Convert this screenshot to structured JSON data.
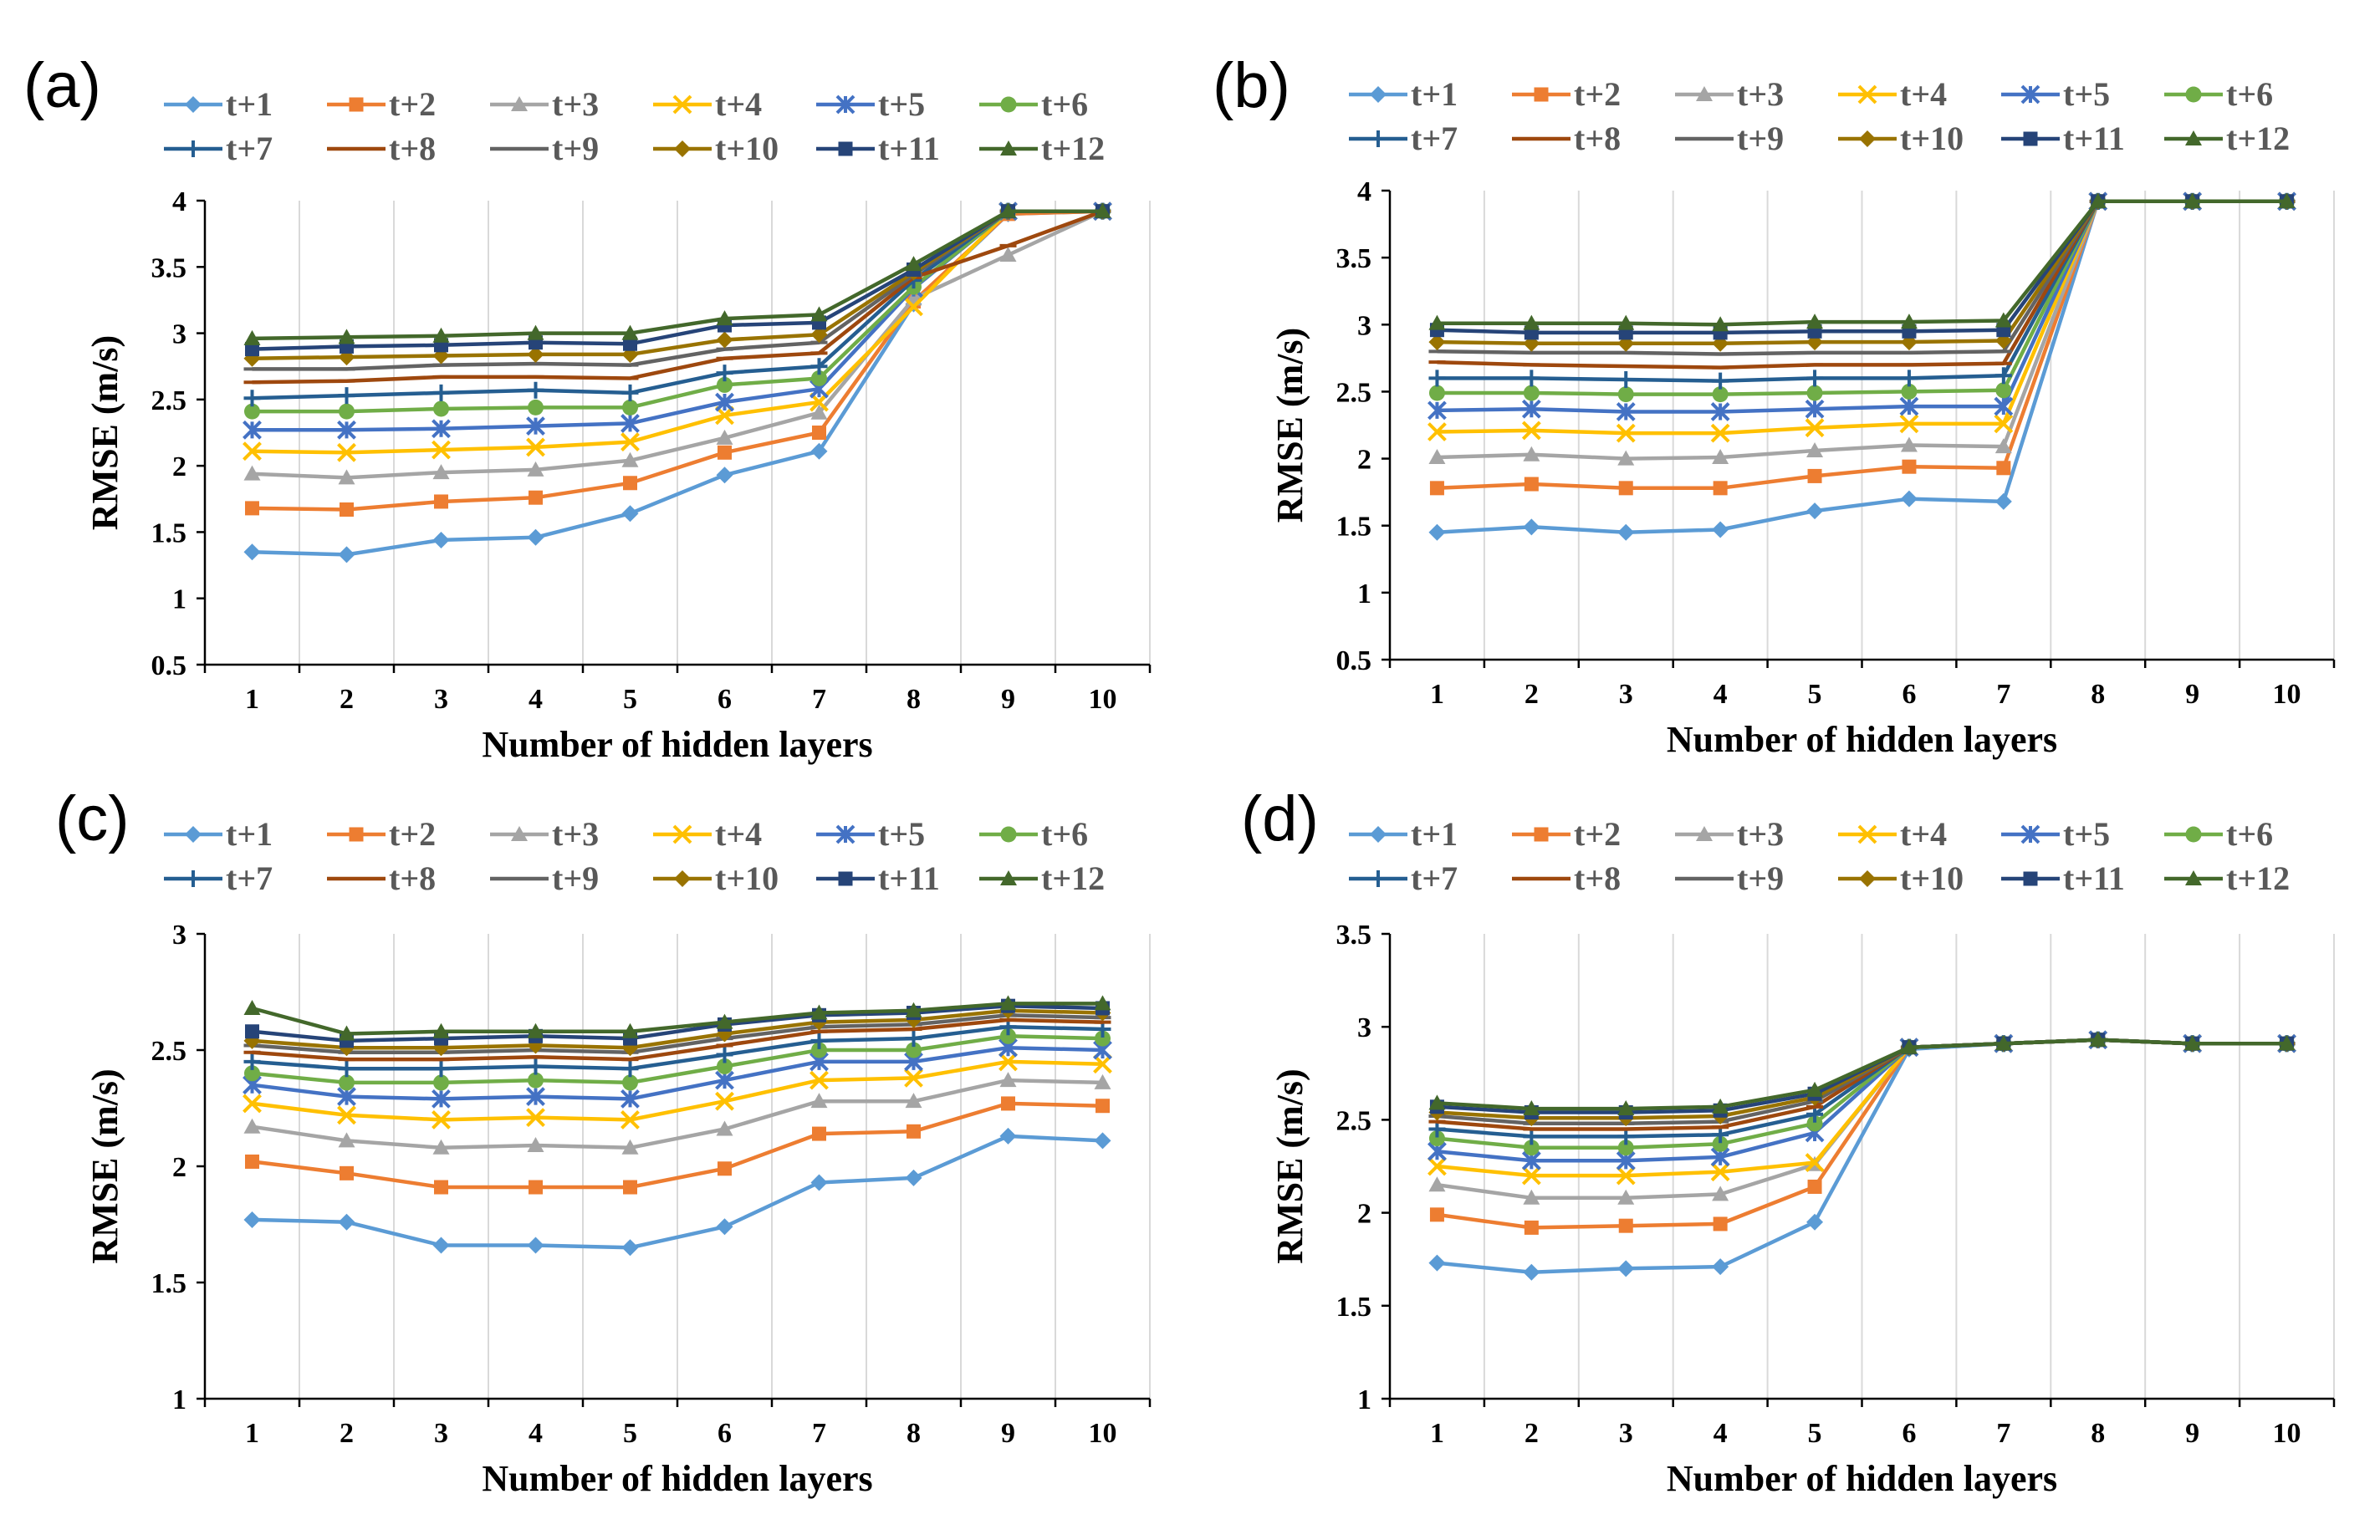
{
  "series_names": [
    "t+1",
    "t+2",
    "t+3",
    "t+4",
    "t+5",
    "t+6",
    "t+7",
    "t+8",
    "t+9",
    "t+10",
    "t+11",
    "t+12"
  ],
  "series_style": [
    {
      "color": "#5b9bd5",
      "marker": "diamond"
    },
    {
      "color": "#ed7d31",
      "marker": "square"
    },
    {
      "color": "#a5a5a5",
      "marker": "triangle"
    },
    {
      "color": "#ffc000",
      "marker": "x"
    },
    {
      "color": "#4472c4",
      "marker": "star"
    },
    {
      "color": "#70ad47",
      "marker": "circle"
    },
    {
      "color": "#255e91",
      "marker": "plus"
    },
    {
      "color": "#9e480e",
      "marker": "dash"
    },
    {
      "color": "#636363",
      "marker": "dash"
    },
    {
      "color": "#997300",
      "marker": "diamond"
    },
    {
      "color": "#264478",
      "marker": "square"
    },
    {
      "color": "#43682b",
      "marker": "triangle"
    }
  ],
  "chart_data": [
    {
      "type": "line",
      "panel_label": "(a)",
      "xlabel": "Number of hidden layers",
      "ylabel": "RMSE (m/s)",
      "x": [
        1,
        2,
        3,
        4,
        5,
        6,
        7,
        8,
        9,
        10
      ],
      "ylim": [
        0.5,
        4
      ],
      "yticks": [
        0.5,
        1,
        1.5,
        2,
        2.5,
        3,
        3.5,
        4
      ],
      "ytick_labels": [
        "0.5",
        "1",
        "1.5",
        "2",
        "2.5",
        "3",
        "3.5",
        "4"
      ],
      "series": [
        {
          "name": "t+1",
          "values": [
            1.35,
            1.33,
            1.44,
            1.46,
            1.64,
            1.93,
            2.11,
            3.22,
            3.9,
            3.92
          ]
        },
        {
          "name": "t+2",
          "values": [
            1.68,
            1.67,
            1.73,
            1.76,
            1.87,
            2.1,
            2.25,
            3.24,
            3.9,
            3.92
          ]
        },
        {
          "name": "t+3",
          "values": [
            1.94,
            1.91,
            1.95,
            1.97,
            2.04,
            2.21,
            2.4,
            3.26,
            3.59,
            3.92
          ]
        },
        {
          "name": "t+4",
          "values": [
            2.11,
            2.1,
            2.12,
            2.14,
            2.18,
            2.38,
            2.48,
            3.2,
            3.92,
            3.92
          ]
        },
        {
          "name": "t+5",
          "values": [
            2.27,
            2.27,
            2.28,
            2.3,
            2.32,
            2.48,
            2.58,
            3.34,
            3.92,
            3.92
          ]
        },
        {
          "name": "t+6",
          "values": [
            2.41,
            2.41,
            2.43,
            2.44,
            2.44,
            2.61,
            2.66,
            3.35,
            3.92,
            3.92
          ]
        },
        {
          "name": "t+7",
          "values": [
            2.51,
            2.53,
            2.55,
            2.57,
            2.55,
            2.7,
            2.75,
            3.4,
            3.92,
            3.92
          ]
        },
        {
          "name": "t+8",
          "values": [
            2.63,
            2.64,
            2.67,
            2.67,
            2.66,
            2.81,
            2.85,
            3.42,
            3.66,
            3.92
          ]
        },
        {
          "name": "t+9",
          "values": [
            2.73,
            2.73,
            2.76,
            2.77,
            2.76,
            2.88,
            2.93,
            3.44,
            3.92,
            3.92
          ]
        },
        {
          "name": "t+10",
          "values": [
            2.81,
            2.82,
            2.83,
            2.84,
            2.84,
            2.95,
            2.99,
            3.46,
            3.92,
            3.92
          ]
        },
        {
          "name": "t+11",
          "values": [
            2.88,
            2.9,
            2.91,
            2.93,
            2.92,
            3.06,
            3.08,
            3.48,
            3.92,
            3.92
          ]
        },
        {
          "name": "t+12",
          "values": [
            2.96,
            2.97,
            2.98,
            3.0,
            3.0,
            3.11,
            3.14,
            3.52,
            3.92,
            3.92
          ]
        }
      ]
    },
    {
      "type": "line",
      "panel_label": "(b)",
      "xlabel": "Number of hidden layers",
      "ylabel": "RMSE (m/s)",
      "x": [
        1,
        2,
        3,
        4,
        5,
        6,
        7,
        8,
        9,
        10
      ],
      "ylim": [
        0.5,
        4
      ],
      "yticks": [
        0.5,
        1,
        1.5,
        2,
        2.5,
        3,
        3.5,
        4
      ],
      "ytick_labels": [
        "0.5",
        "1",
        "1.5",
        "2",
        "2.5",
        "3",
        "3.5",
        "4"
      ],
      "series": [
        {
          "name": "t+1",
          "values": [
            1.45,
            1.49,
            1.45,
            1.47,
            1.61,
            1.7,
            1.68,
            3.92,
            3.92,
            3.92
          ]
        },
        {
          "name": "t+2",
          "values": [
            1.78,
            1.81,
            1.78,
            1.78,
            1.87,
            1.94,
            1.93,
            3.92,
            3.92,
            3.92
          ]
        },
        {
          "name": "t+3",
          "values": [
            2.01,
            2.03,
            2.0,
            2.01,
            2.06,
            2.1,
            2.09,
            3.92,
            3.92,
            3.92
          ]
        },
        {
          "name": "t+4",
          "values": [
            2.2,
            2.21,
            2.19,
            2.19,
            2.23,
            2.26,
            2.26,
            3.92,
            3.92,
            3.92
          ]
        },
        {
          "name": "t+5",
          "values": [
            2.36,
            2.37,
            2.35,
            2.35,
            2.37,
            2.39,
            2.39,
            3.92,
            3.92,
            3.92
          ]
        },
        {
          "name": "t+6",
          "values": [
            2.49,
            2.49,
            2.48,
            2.48,
            2.49,
            2.5,
            2.51,
            3.92,
            3.92,
            3.92
          ]
        },
        {
          "name": "t+7",
          "values": [
            2.6,
            2.6,
            2.59,
            2.58,
            2.6,
            2.6,
            2.62,
            3.92,
            3.92,
            3.92
          ]
        },
        {
          "name": "t+8",
          "values": [
            2.72,
            2.7,
            2.69,
            2.68,
            2.7,
            2.7,
            2.71,
            3.92,
            3.92,
            3.92
          ]
        },
        {
          "name": "t+9",
          "values": [
            2.8,
            2.79,
            2.79,
            2.78,
            2.79,
            2.79,
            2.8,
            3.92,
            3.92,
            3.92
          ]
        },
        {
          "name": "t+10",
          "values": [
            2.87,
            2.86,
            2.86,
            2.86,
            2.87,
            2.87,
            2.88,
            3.92,
            3.92,
            3.92
          ]
        },
        {
          "name": "t+11",
          "values": [
            2.96,
            2.94,
            2.94,
            2.94,
            2.95,
            2.95,
            2.96,
            3.92,
            3.92,
            3.92
          ]
        },
        {
          "name": "t+12",
          "values": [
            3.01,
            3.01,
            3.01,
            3.0,
            3.02,
            3.02,
            3.03,
            3.92,
            3.92,
            3.92
          ]
        }
      ]
    },
    {
      "type": "line",
      "panel_label": "(c)",
      "xlabel": "Number of hidden layers",
      "ylabel": "RMSE (m/s)",
      "x": [
        1,
        2,
        3,
        4,
        5,
        6,
        7,
        8,
        9,
        10
      ],
      "ylim": [
        1,
        3
      ],
      "yticks": [
        1,
        1.5,
        2,
        2.5,
        3
      ],
      "ytick_labels": [
        "1",
        "1.5",
        "2",
        "2.5",
        "3"
      ],
      "series": [
        {
          "name": "t+1",
          "values": [
            1.77,
            1.76,
            1.66,
            1.66,
            1.65,
            1.74,
            1.93,
            1.95,
            2.13,
            2.11
          ]
        },
        {
          "name": "t+2",
          "values": [
            2.02,
            1.97,
            1.91,
            1.91,
            1.91,
            1.99,
            2.14,
            2.15,
            2.27,
            2.26
          ]
        },
        {
          "name": "t+3",
          "values": [
            2.17,
            2.11,
            2.08,
            2.09,
            2.08,
            2.16,
            2.28,
            2.28,
            2.37,
            2.36
          ]
        },
        {
          "name": "t+4",
          "values": [
            2.27,
            2.22,
            2.2,
            2.21,
            2.2,
            2.28,
            2.37,
            2.38,
            2.45,
            2.44
          ]
        },
        {
          "name": "t+5",
          "values": [
            2.35,
            2.3,
            2.29,
            2.3,
            2.29,
            2.37,
            2.45,
            2.45,
            2.51,
            2.5
          ]
        },
        {
          "name": "t+6",
          "values": [
            2.4,
            2.36,
            2.36,
            2.37,
            2.36,
            2.43,
            2.5,
            2.5,
            2.56,
            2.55
          ]
        },
        {
          "name": "t+7",
          "values": [
            2.45,
            2.42,
            2.42,
            2.43,
            2.42,
            2.48,
            2.54,
            2.55,
            2.6,
            2.59
          ]
        },
        {
          "name": "t+8",
          "values": [
            2.49,
            2.46,
            2.46,
            2.47,
            2.46,
            2.52,
            2.58,
            2.59,
            2.63,
            2.62
          ]
        },
        {
          "name": "t+9",
          "values": [
            2.52,
            2.49,
            2.49,
            2.5,
            2.49,
            2.55,
            2.6,
            2.61,
            2.65,
            2.64
          ]
        },
        {
          "name": "t+10",
          "values": [
            2.54,
            2.51,
            2.51,
            2.52,
            2.51,
            2.57,
            2.62,
            2.63,
            2.67,
            2.66
          ]
        },
        {
          "name": "t+11",
          "values": [
            2.58,
            2.54,
            2.55,
            2.56,
            2.55,
            2.61,
            2.65,
            2.66,
            2.69,
            2.68
          ]
        },
        {
          "name": "t+12",
          "values": [
            2.68,
            2.57,
            2.58,
            2.58,
            2.58,
            2.62,
            2.66,
            2.67,
            2.7,
            2.7
          ]
        }
      ]
    },
    {
      "type": "line",
      "panel_label": "(d)",
      "xlabel": "Number of hidden layers",
      "ylabel": "RMSE (m/s)",
      "x": [
        1,
        2,
        3,
        4,
        5,
        6,
        7,
        8,
        9,
        10
      ],
      "ylim": [
        1,
        3.5
      ],
      "yticks": [
        1,
        1.5,
        2,
        2.5,
        3,
        3.5
      ],
      "ytick_labels": [
        "1",
        "1.5",
        "2",
        "2.5",
        "3",
        "3.5"
      ],
      "series": [
        {
          "name": "t+1",
          "values": [
            1.73,
            1.68,
            1.7,
            1.71,
            1.95,
            2.88,
            2.91,
            2.93,
            2.91,
            2.91
          ]
        },
        {
          "name": "t+2",
          "values": [
            1.99,
            1.92,
            1.93,
            1.94,
            2.14,
            2.89,
            2.91,
            2.93,
            2.91,
            2.91
          ]
        },
        {
          "name": "t+3",
          "values": [
            2.15,
            2.08,
            2.08,
            2.1,
            2.26,
            2.89,
            2.91,
            2.93,
            2.91,
            2.91
          ]
        },
        {
          "name": "t+4",
          "values": [
            2.25,
            2.2,
            2.2,
            2.22,
            2.27,
            2.89,
            2.91,
            2.93,
            2.91,
            2.91
          ]
        },
        {
          "name": "t+5",
          "values": [
            2.33,
            2.28,
            2.28,
            2.3,
            2.43,
            2.89,
            2.91,
            2.93,
            2.91,
            2.91
          ]
        },
        {
          "name": "t+6",
          "values": [
            2.4,
            2.35,
            2.35,
            2.37,
            2.48,
            2.89,
            2.91,
            2.93,
            2.91,
            2.91
          ]
        },
        {
          "name": "t+7",
          "values": [
            2.45,
            2.41,
            2.41,
            2.42,
            2.53,
            2.89,
            2.91,
            2.93,
            2.91,
            2.91
          ]
        },
        {
          "name": "t+8",
          "values": [
            2.49,
            2.45,
            2.45,
            2.46,
            2.57,
            2.89,
            2.91,
            2.93,
            2.91,
            2.91
          ]
        },
        {
          "name": "t+9",
          "values": [
            2.52,
            2.48,
            2.48,
            2.49,
            2.6,
            2.89,
            2.91,
            2.93,
            2.91,
            2.91
          ]
        },
        {
          "name": "t+10",
          "values": [
            2.54,
            2.51,
            2.51,
            2.52,
            2.62,
            2.89,
            2.91,
            2.93,
            2.91,
            2.91
          ]
        },
        {
          "name": "t+11",
          "values": [
            2.57,
            2.54,
            2.54,
            2.55,
            2.64,
            2.89,
            2.91,
            2.93,
            2.91,
            2.91
          ]
        },
        {
          "name": "t+12",
          "values": [
            2.59,
            2.56,
            2.56,
            2.57,
            2.66,
            2.89,
            2.91,
            2.93,
            2.91,
            2.91
          ]
        }
      ]
    }
  ]
}
